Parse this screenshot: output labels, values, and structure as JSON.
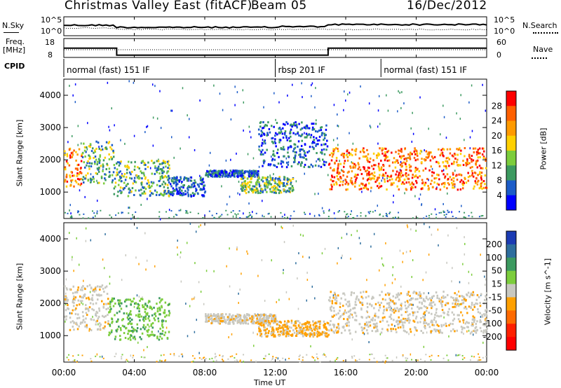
{
  "header": {
    "station": "Christmas Valley East (fitACF)",
    "beam": "Beam 05",
    "date": "16/Dec/2012"
  },
  "top_panel": {
    "left_label": "N.Sky",
    "right_label": "N.Search",
    "left_ticks": [
      "10^5",
      "10^0"
    ],
    "right_ticks": [
      "10^5",
      "10^0"
    ]
  },
  "freq_panel": {
    "left_label_1": "Freq.",
    "left_label_2": "[MHz]",
    "right_label": "Nave",
    "left_ticks": [
      "18",
      "8"
    ],
    "right_ticks": [
      "60",
      "0"
    ]
  },
  "cpid": {
    "label": "CPID",
    "segments": [
      "normal (fast) 151 IF",
      "rbsp 201 IF",
      "normal (fast) 151 IF"
    ]
  },
  "power_panel": {
    "ylabel": "Slant Range [km]",
    "yticks": [
      "4000",
      "3000",
      "2000",
      "1000"
    ],
    "colorbar_label": "Power [dB]",
    "colorbar_ticks": [
      "28",
      "24",
      "20",
      "16",
      "12",
      "8",
      "4"
    ],
    "colorbar_colors": [
      "#ff0000",
      "#ff6000",
      "#ff9a00",
      "#ffd000",
      "#7ccd3c",
      "#3c9a60",
      "#1c5cc8",
      "#0000ff"
    ]
  },
  "velocity_panel": {
    "ylabel": "Slant Range [km]",
    "yticks": [
      "4000",
      "3000",
      "2000",
      "1000"
    ],
    "colorbar_label": "Velocity [m s^-1]",
    "colorbar_ticks": [
      "200",
      "100",
      "50",
      "15",
      "-15",
      "-50",
      "-100",
      "-200"
    ],
    "colorbar_colors": [
      "#1c3cb4",
      "#2e6e9e",
      "#3c9a60",
      "#7ccd3c",
      "#c8c8c0",
      "#ffa000",
      "#ff6a00",
      "#ff2000",
      "#ff0000"
    ]
  },
  "xaxis": {
    "label": "Time UT",
    "ticks": [
      "00:00",
      "04:00",
      "08:00",
      "12:00",
      "16:00",
      "20:00",
      "00:00"
    ]
  },
  "chart_data": {
    "type": "heatmap",
    "title": "Christmas Valley East (fitACF)",
    "x_range_hours": [
      0,
      24
    ],
    "ylim_km": [
      180,
      4500
    ],
    "cpid_segments": [
      {
        "label": "normal (fast) 151 IF",
        "start_h": 0,
        "end_h": 12
      },
      {
        "label": "rbsp 201 IF",
        "start_h": 12,
        "end_h": 18
      },
      {
        "label": "normal (fast) 151 IF",
        "start_h": 18,
        "end_h": 24
      }
    ],
    "frequency_mhz": [
      {
        "start_h": 0,
        "end_h": 3,
        "value": 14
      },
      {
        "start_h": 3,
        "end_h": 15,
        "value": 9.5
      },
      {
        "start_h": 15,
        "end_h": 24,
        "value": 14
      }
    ],
    "power_regions": [
      {
        "t0": 0.0,
        "t1": 1.0,
        "r0": 1200,
        "r1": 2400,
        "level": "high"
      },
      {
        "t0": 1.0,
        "t1": 2.8,
        "r0": 1300,
        "r1": 2600,
        "level": "medium"
      },
      {
        "t0": 2.8,
        "t1": 6.0,
        "r0": 900,
        "r1": 2000,
        "level": "medium"
      },
      {
        "t0": 6.0,
        "t1": 8.0,
        "r0": 900,
        "r1": 1500,
        "level": "low"
      },
      {
        "t0": 8.0,
        "t1": 11.0,
        "r0": 1500,
        "r1": 1700,
        "level": "low"
      },
      {
        "t0": 10.0,
        "t1": 13.0,
        "r0": 1000,
        "r1": 1500,
        "level": "medium"
      },
      {
        "t0": 11.0,
        "t1": 15.0,
        "r0": 1800,
        "r1": 3200,
        "level": "low"
      },
      {
        "t0": 15.0,
        "t1": 24.0,
        "r0": 1100,
        "r1": 2400,
        "level": "high"
      }
    ],
    "velocity_regions": [
      {
        "t0": 0.0,
        "t1": 2.5,
        "r0": 1200,
        "r1": 2600,
        "velocity": "-15 to 15"
      },
      {
        "t0": 2.5,
        "t1": 6.0,
        "r0": 900,
        "r1": 2200,
        "velocity": "15 to 50"
      },
      {
        "t0": 8.0,
        "t1": 12.0,
        "r0": 1400,
        "r1": 1700,
        "velocity": "-15 to 15"
      },
      {
        "t0": 11.0,
        "t1": 15.0,
        "r0": 1000,
        "r1": 1500,
        "velocity": "-15 to -50"
      },
      {
        "t0": 15.0,
        "t1": 24.0,
        "r0": 1100,
        "r1": 2400,
        "velocity": "-15 to 15"
      }
    ]
  }
}
